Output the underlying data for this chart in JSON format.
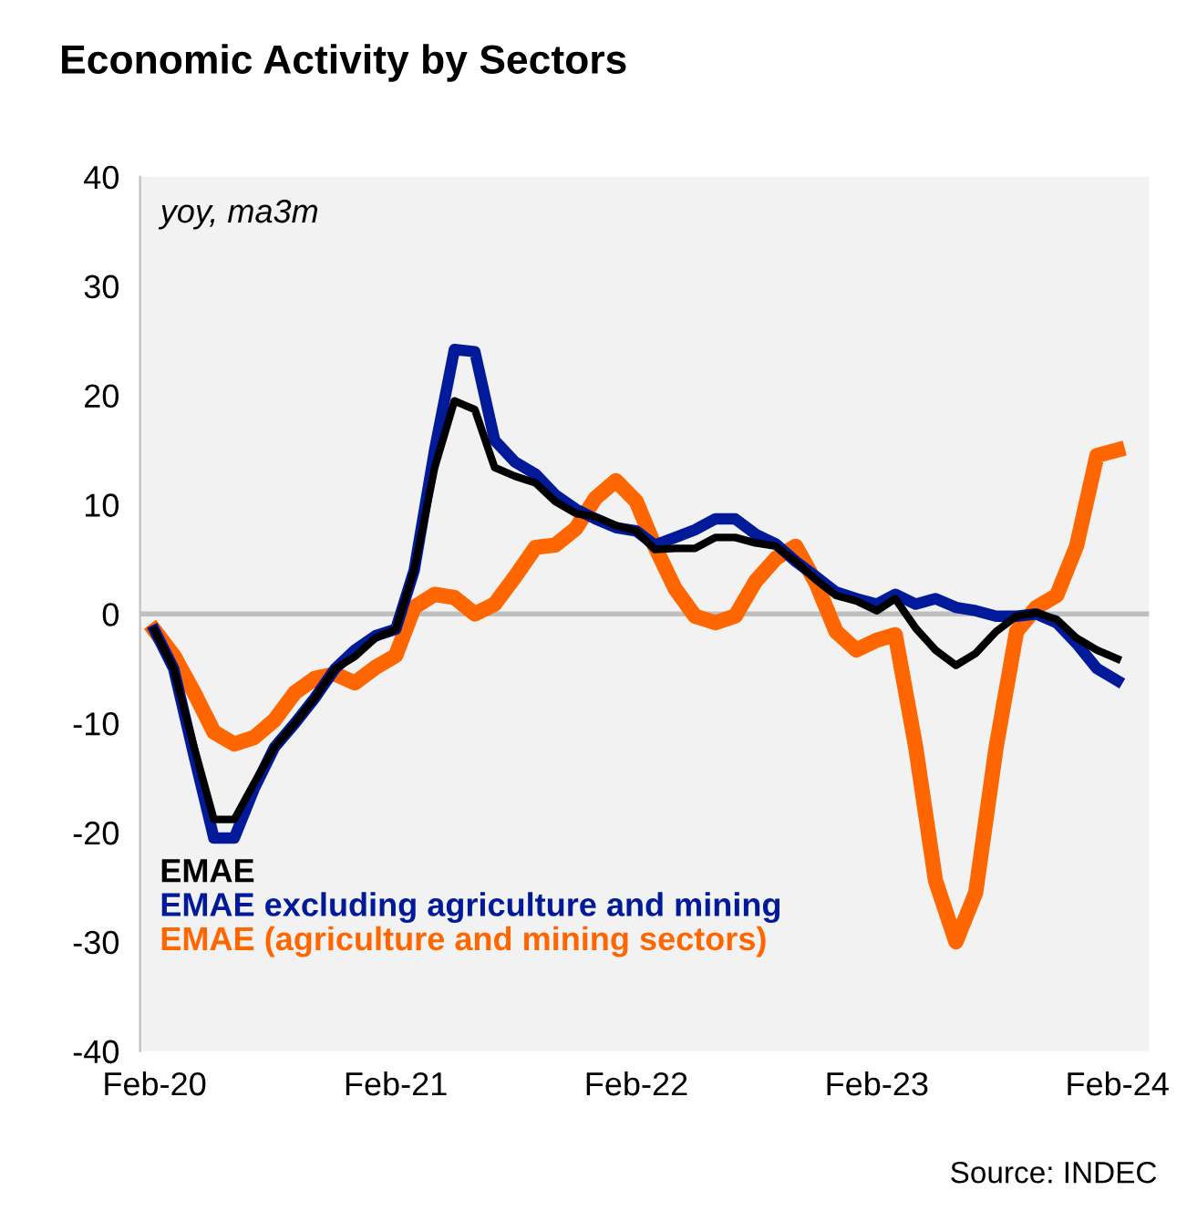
{
  "chart_data": {
    "type": "line",
    "title": "Economic Activity by Sectors",
    "annotations": [
      "yoy, ma3m",
      "Source: INDEC"
    ],
    "x": [
      "2020-02",
      "2020-03",
      "2020-04",
      "2020-05",
      "2020-06",
      "2020-07",
      "2020-08",
      "2020-09",
      "2020-10",
      "2020-11",
      "2020-12",
      "2021-01",
      "2021-02",
      "2021-03",
      "2021-04",
      "2021-05",
      "2021-06",
      "2021-07",
      "2021-08",
      "2021-09",
      "2021-10",
      "2021-11",
      "2021-12",
      "2022-01",
      "2022-02",
      "2022-03",
      "2022-04",
      "2022-05",
      "2022-06",
      "2022-07",
      "2022-08",
      "2022-09",
      "2022-10",
      "2022-11",
      "2022-12",
      "2023-01",
      "2023-02",
      "2023-03",
      "2023-04",
      "2023-05",
      "2023-06",
      "2023-07",
      "2023-08",
      "2023-09",
      "2023-10",
      "2023-11",
      "2023-12",
      "2024-01",
      "2024-02"
    ],
    "series": [
      {
        "name": "EMAE",
        "color": "#000000",
        "values": [
          -1.5,
          -5,
          -12.2,
          -18.8,
          -18.8,
          -15.5,
          -12.2,
          -10,
          -7.7,
          -5,
          -3.9,
          -2.2,
          -1.4,
          4,
          13.4,
          19.5,
          18.7,
          13.4,
          12.6,
          12,
          10.3,
          9.2,
          8.9,
          8.1,
          7.6,
          5.9,
          6,
          6,
          7,
          7,
          6.5,
          6.2,
          4.8,
          3.1,
          1.7,
          1.2,
          0.3,
          1.4,
          -1.3,
          -3.3,
          -4.7,
          -3.6,
          -1.6,
          -0.2,
          0.1,
          -0.5,
          -2.2,
          -3.3,
          -4.1
        ]
      },
      {
        "name": "EMAE excluding agriculture and mining",
        "color": "#001a99",
        "values": [
          -1.5,
          -5,
          -13,
          -20.5,
          -20.5,
          -16,
          -12.2,
          -10,
          -7.7,
          -5,
          -3.3,
          -2,
          -1.4,
          4,
          15,
          24.2,
          24,
          15.9,
          13.9,
          12.8,
          10.9,
          9.6,
          8.7,
          7.9,
          7.6,
          6.3,
          7,
          7.7,
          8.7,
          8.7,
          7.3,
          6.4,
          4.8,
          3.4,
          2,
          1.4,
          0.9,
          1.8,
          0.9,
          1.4,
          0.6,
          0.3,
          -0.2,
          -0.2,
          0,
          -0.8,
          -2.7,
          -5,
          -6.1
        ]
      },
      {
        "name": "EMAE (agriculture and mining sectors)",
        "color": "#ff6600",
        "values": [
          -1.5,
          -3.8,
          -7.2,
          -10.8,
          -11.9,
          -11.3,
          -9.7,
          -7.2,
          -5.9,
          -5.5,
          -6.3,
          -4.9,
          -3.8,
          0.6,
          1.8,
          1.5,
          0,
          0.9,
          3.4,
          6.1,
          6.3,
          7.8,
          10.6,
          12.2,
          10.3,
          6.2,
          2.3,
          -0.2,
          -0.8,
          -0.2,
          3,
          5.1,
          6.2,
          2.8,
          -1.6,
          -3.3,
          -2.4,
          -1.9,
          -12.2,
          -24.4,
          -30,
          -25.5,
          -12.2,
          -1.6,
          0.6,
          1.7,
          6.2,
          14.5,
          15
        ]
      }
    ],
    "xlim": [
      "2020-01-10",
      "2024-03-20"
    ],
    "xticks": [
      {
        "value": "2020-02",
        "label": "Feb-20"
      },
      {
        "value": "2021-02",
        "label": "Feb-21"
      },
      {
        "value": "2022-02",
        "label": "Feb-22"
      },
      {
        "value": "2023-02",
        "label": "Feb-23"
      },
      {
        "value": "2024-02",
        "label": "Feb-24"
      }
    ],
    "ylim": [
      -40,
      40
    ],
    "yticks": [
      -40,
      -30,
      -20,
      -10,
      0,
      10,
      20,
      30,
      40
    ],
    "ref_lines": [
      {
        "axis": "y",
        "value": 0,
        "color": "#bfbfbf"
      }
    ],
    "grid": false,
    "legend": "bottom left",
    "marker": "none",
    "line_style": "solid"
  }
}
